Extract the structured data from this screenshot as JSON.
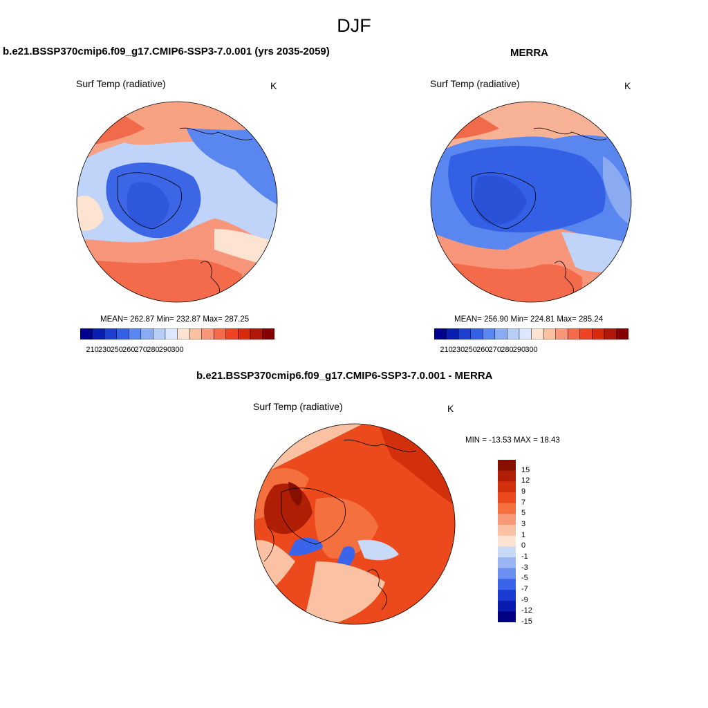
{
  "season": "DJF",
  "panels": {
    "model": {
      "title": "b.e21.BSSP370cmip6.f09_g17.CMIP6-SSP3-7.0.001 (yrs 2035-2059)",
      "variable": "Surf Temp (radiative)",
      "units": "K",
      "stats": "MEAN= 262.87  Min= 232.87  Max= 287.25"
    },
    "obs": {
      "title": "MERRA",
      "variable": "Surf Temp (radiative)",
      "units": "K",
      "stats": "MEAN= 256.90  Min= 224.81  Max= 285.24"
    },
    "diff": {
      "title": "b.e21.BSSP370cmip6.f09_g17.CMIP6-SSP3-7.0.001 - MERRA",
      "variable": "Surf Temp (radiative)",
      "units": "K",
      "stats": "MIN = -13.53 MAX =  18.43"
    }
  },
  "abs_colorbar": {
    "colors": [
      "#00008b",
      "#0a1fb0",
      "#1f3fd0",
      "#3460e6",
      "#5a86ef",
      "#8aaaf2",
      "#b8cdf7",
      "#dce8fb",
      "#fde3d2",
      "#fbc1a3",
      "#f7967a",
      "#f46b4c",
      "#ef4423",
      "#da2a0e",
      "#b21608",
      "#820000"
    ],
    "labels": [
      "210",
      "230",
      "250",
      "260",
      "270",
      "280",
      "290",
      "300"
    ]
  },
  "diff_colorbar": {
    "colors": [
      "#000080",
      "#0a1cb0",
      "#1a3cd2",
      "#3a64ea",
      "#6a8ff0",
      "#9ab4f4",
      "#c8daf8",
      "#fde3d2",
      "#fbc1a3",
      "#f89a78",
      "#f4703f",
      "#ec4a1c",
      "#d22f0c",
      "#b01e06",
      "#861000"
    ],
    "labels": [
      "15",
      "12",
      "9",
      "7",
      "5",
      "3",
      "1",
      "0",
      "-1",
      "-3",
      "-5",
      "-7",
      "-9",
      "-12",
      "-15"
    ]
  }
}
